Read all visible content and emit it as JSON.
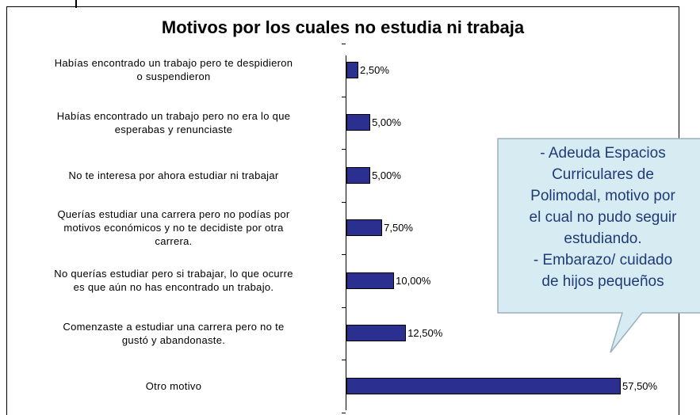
{
  "chart_data": {
    "type": "bar",
    "orientation": "horizontal",
    "title": "Motivos por los cuales no estudia ni trabaja",
    "categories": [
      "Habías encontrado un trabajo pero te despidieron\no suspendieron",
      "Habías encontrado un trabajo pero no era lo que\nesperabas y renunciaste",
      "No te interesa por ahora estudiar ni trabajar",
      "Querías estudiar una carrera pero no podías por\nmotivos económicos y no te decidiste por otra\ncarrera.",
      "No querías estudiar pero si trabajar, lo que ocurre\nes que aún no has encontrado un trabajo.",
      "Comenzaste a estudiar una carrera pero no te\ngustó y abandonaste.",
      "Otro motivo"
    ],
    "values": [
      2.5,
      5,
      5,
      7.5,
      10,
      12.5,
      57.5
    ],
    "value_labels": [
      "2,50%",
      "5,00%",
      "5,00%",
      "7,50%",
      "10,00%",
      "12,50%",
      "57,50%"
    ],
    "color": "#2b2f8f",
    "annotation": "- Adeuda Espacios\nCurriculares de\nPolimodal, motivo por\nel cual no pudo seguir\nestudiando.\n- Embarazo/ cuidado\nde hijos pequeños"
  }
}
